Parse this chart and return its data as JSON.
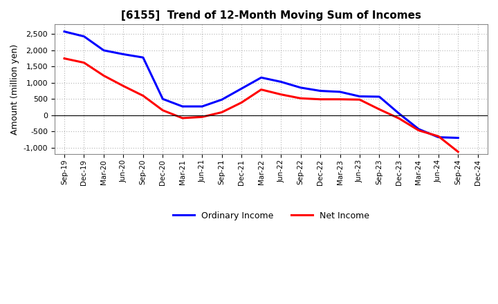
{
  "title": "[6155]  Trend of 12-Month Moving Sum of Incomes",
  "ylabel": "Amount (million yen)",
  "background_color": "#ffffff",
  "grid_color": "#b0b0b0",
  "x_labels": [
    "Sep-19",
    "Dec-19",
    "Mar-20",
    "Jun-20",
    "Sep-20",
    "Dec-20",
    "Mar-21",
    "Jun-21",
    "Sep-21",
    "Dec-21",
    "Mar-22",
    "Jun-22",
    "Sep-22",
    "Dec-22",
    "Mar-23",
    "Jun-23",
    "Sep-23",
    "Dec-23",
    "Mar-24",
    "Jun-24",
    "Sep-24",
    "Dec-24"
  ],
  "ordinary_income": [
    2580,
    2430,
    2000,
    1880,
    1780,
    500,
    270,
    270,
    480,
    820,
    1160,
    1030,
    850,
    750,
    720,
    580,
    570,
    50,
    -430,
    -680,
    -700,
    null
  ],
  "net_income": [
    1750,
    1620,
    1220,
    900,
    600,
    150,
    -90,
    -55,
    90,
    390,
    790,
    640,
    520,
    490,
    490,
    480,
    180,
    -100,
    -470,
    -650,
    -1130,
    null
  ],
  "ordinary_color": "#0000ff",
  "net_color": "#ff0000",
  "ylim": [
    -1200,
    2800
  ],
  "yticks": [
    -1000,
    -500,
    0,
    500,
    1000,
    1500,
    2000,
    2500
  ],
  "legend_labels": [
    "Ordinary Income",
    "Net Income"
  ]
}
